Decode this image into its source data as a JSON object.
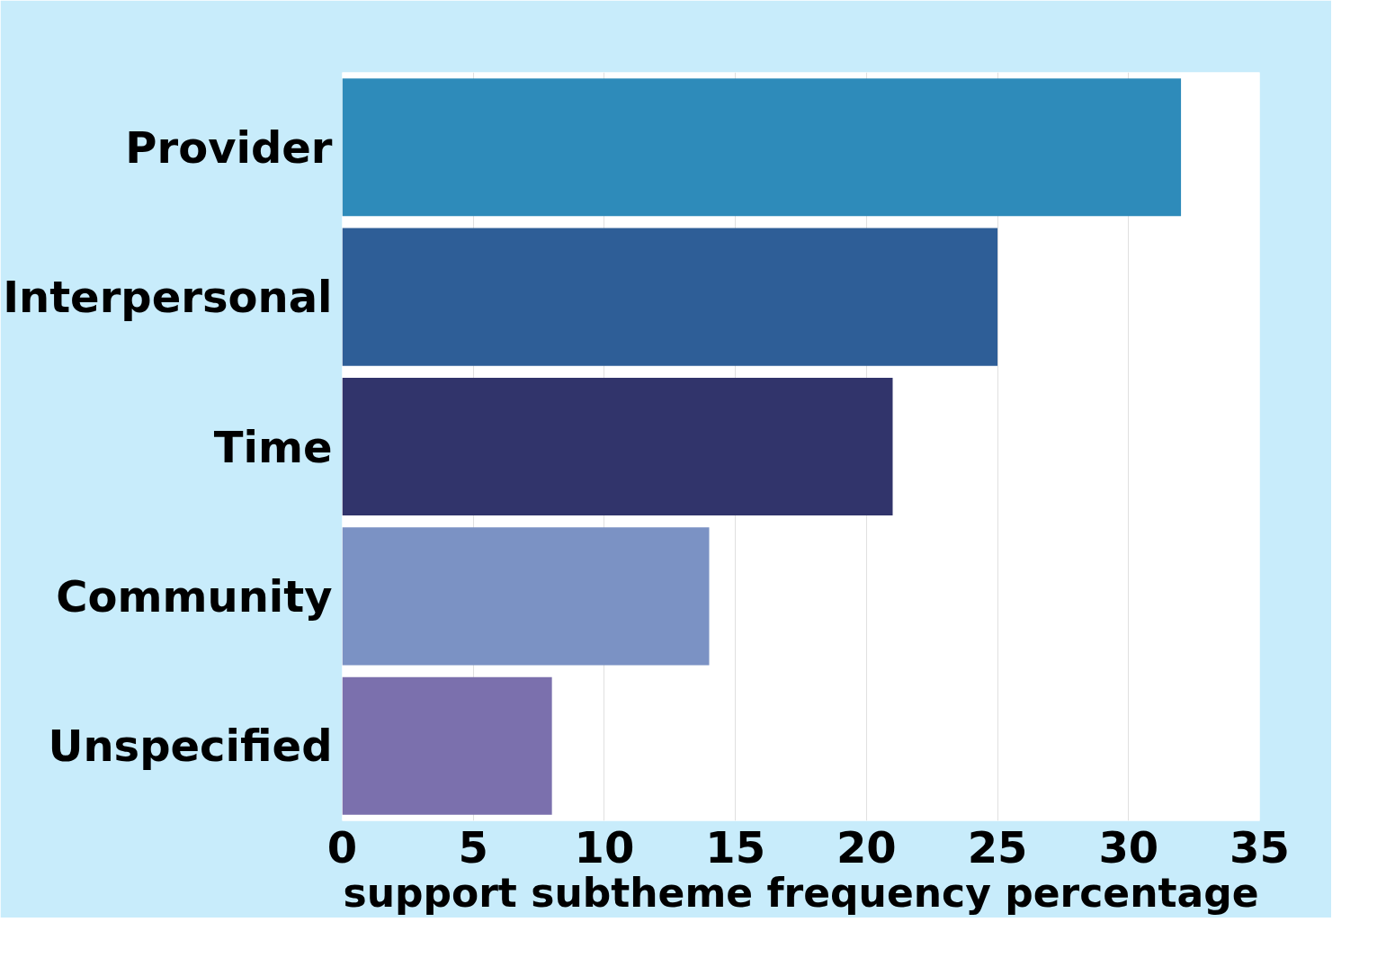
{
  "chart_data": {
    "type": "bar",
    "orientation": "horizontal",
    "xlabel": "support subtheme frequency percentage",
    "categories": [
      "Provider",
      "Interpersonal",
      "Time",
      "Community",
      "Unspecified"
    ],
    "values": [
      32,
      25,
      21,
      14,
      8
    ],
    "colors": [
      "#2e8bba",
      "#2e5e97",
      "#31346b",
      "#7b92c4",
      "#7b70ad"
    ],
    "xlim": [
      0,
      35
    ],
    "xticks": [
      0,
      5,
      10,
      15,
      20,
      25,
      30,
      35
    ],
    "grid": "x"
  }
}
